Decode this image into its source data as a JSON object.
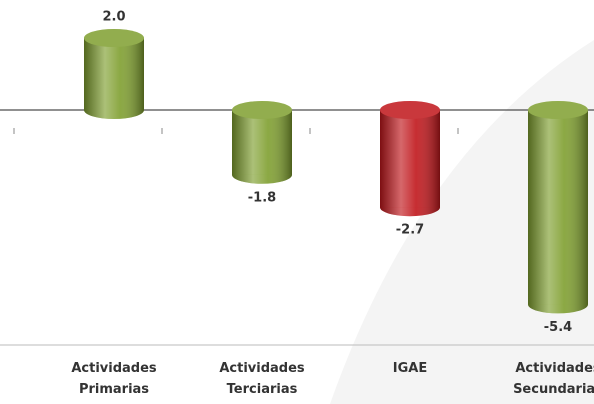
{
  "chart_data": {
    "type": "cylinder-bar",
    "categories": [
      "Actividades Primarias",
      "Actividades Terciarias",
      "IGAE",
      "Actividades Secundarias"
    ],
    "values": [
      2.0,
      -1.8,
      -2.7,
      -5.4
    ],
    "value_labels": [
      "2.0",
      "-1.8",
      "-2.7",
      "-5.4"
    ],
    "colors": [
      "#7f9f2f",
      "#7f9f2f",
      "#c0161b",
      "#7f9f2f"
    ]
  }
}
